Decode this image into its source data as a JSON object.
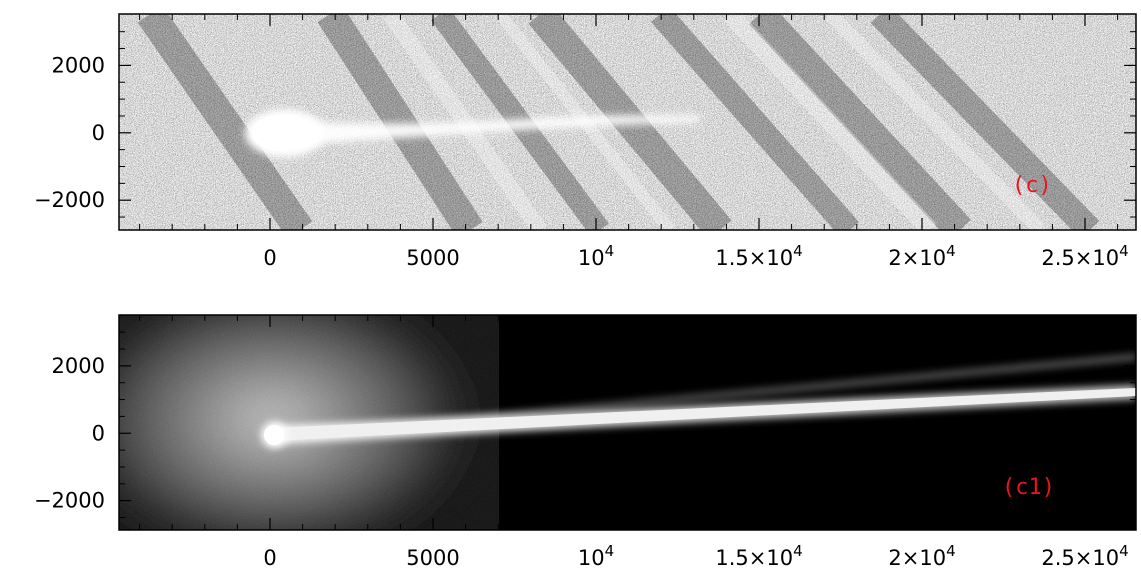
{
  "panels": [
    {
      "label": "(c)",
      "style": "noisy",
      "y_ticks": [
        "2000",
        "0",
        "−2000"
      ],
      "x_ticks": [
        {
          "text": "0",
          "exp": ""
        },
        {
          "text": "5000",
          "exp": ""
        },
        {
          "text": "10",
          "exp": "4"
        },
        {
          "text": "1.5×10",
          "exp": "4"
        },
        {
          "text": "2×10",
          "exp": "4"
        },
        {
          "text": "2.5×10",
          "exp": "4"
        }
      ]
    },
    {
      "label": "(c1)",
      "style": "smooth",
      "y_ticks": [
        "2000",
        "0",
        "−2000"
      ],
      "x_ticks": [
        {
          "text": "0",
          "exp": ""
        },
        {
          "text": "5000",
          "exp": ""
        },
        {
          "text": "10",
          "exp": "4"
        },
        {
          "text": "1.5×10",
          "exp": "4"
        },
        {
          "text": "2×10",
          "exp": "4"
        },
        {
          "text": "2.5×10",
          "exp": "4"
        }
      ]
    }
  ],
  "colors": {
    "label": "#e8141e",
    "frame": "#000000"
  }
}
